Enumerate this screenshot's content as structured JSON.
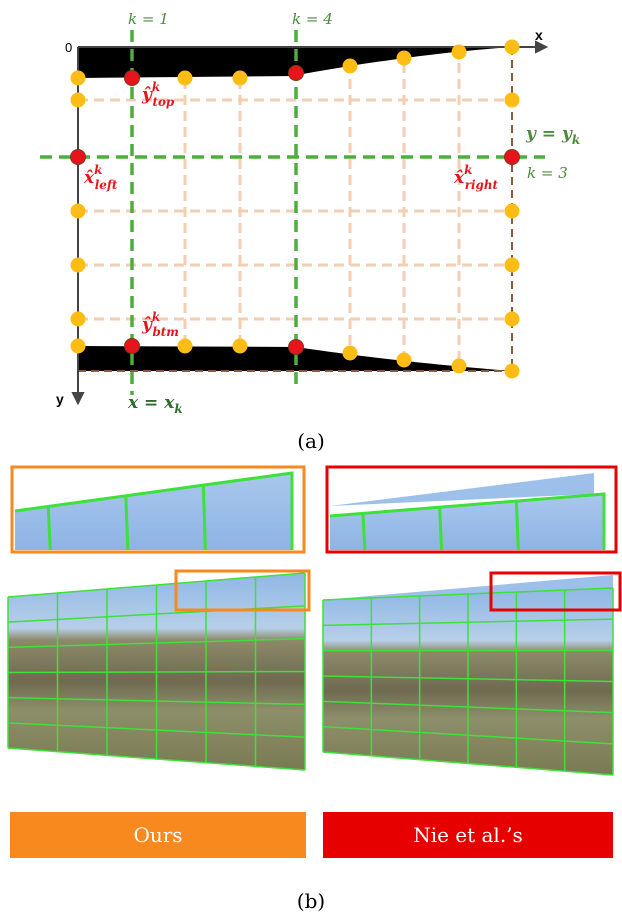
{
  "panel_a": {
    "k1": "k = 1",
    "k4": "k = 4",
    "k3": "k = 3",
    "origin": "0",
    "x_axis": "x",
    "y_axis": "y",
    "y_top": {
      "base": "ŷ",
      "sup": "k",
      "sub": "top"
    },
    "x_left": {
      "base": "x̂",
      "sup": "k",
      "sub": "left"
    },
    "x_right": {
      "base": "x̂",
      "sup": "k",
      "sub": "right"
    },
    "y_btm": {
      "base": "ŷ",
      "sup": "k",
      "sub": "btm"
    },
    "y_eq": {
      "base": "y = y",
      "sub": "k"
    },
    "x_eq": {
      "base": "x = x",
      "sub": "k"
    },
    "caption": "(a)"
  },
  "panel_b": {
    "ours": "Ours",
    "nie": "Nie et al.’s",
    "caption": "(b)"
  }
}
